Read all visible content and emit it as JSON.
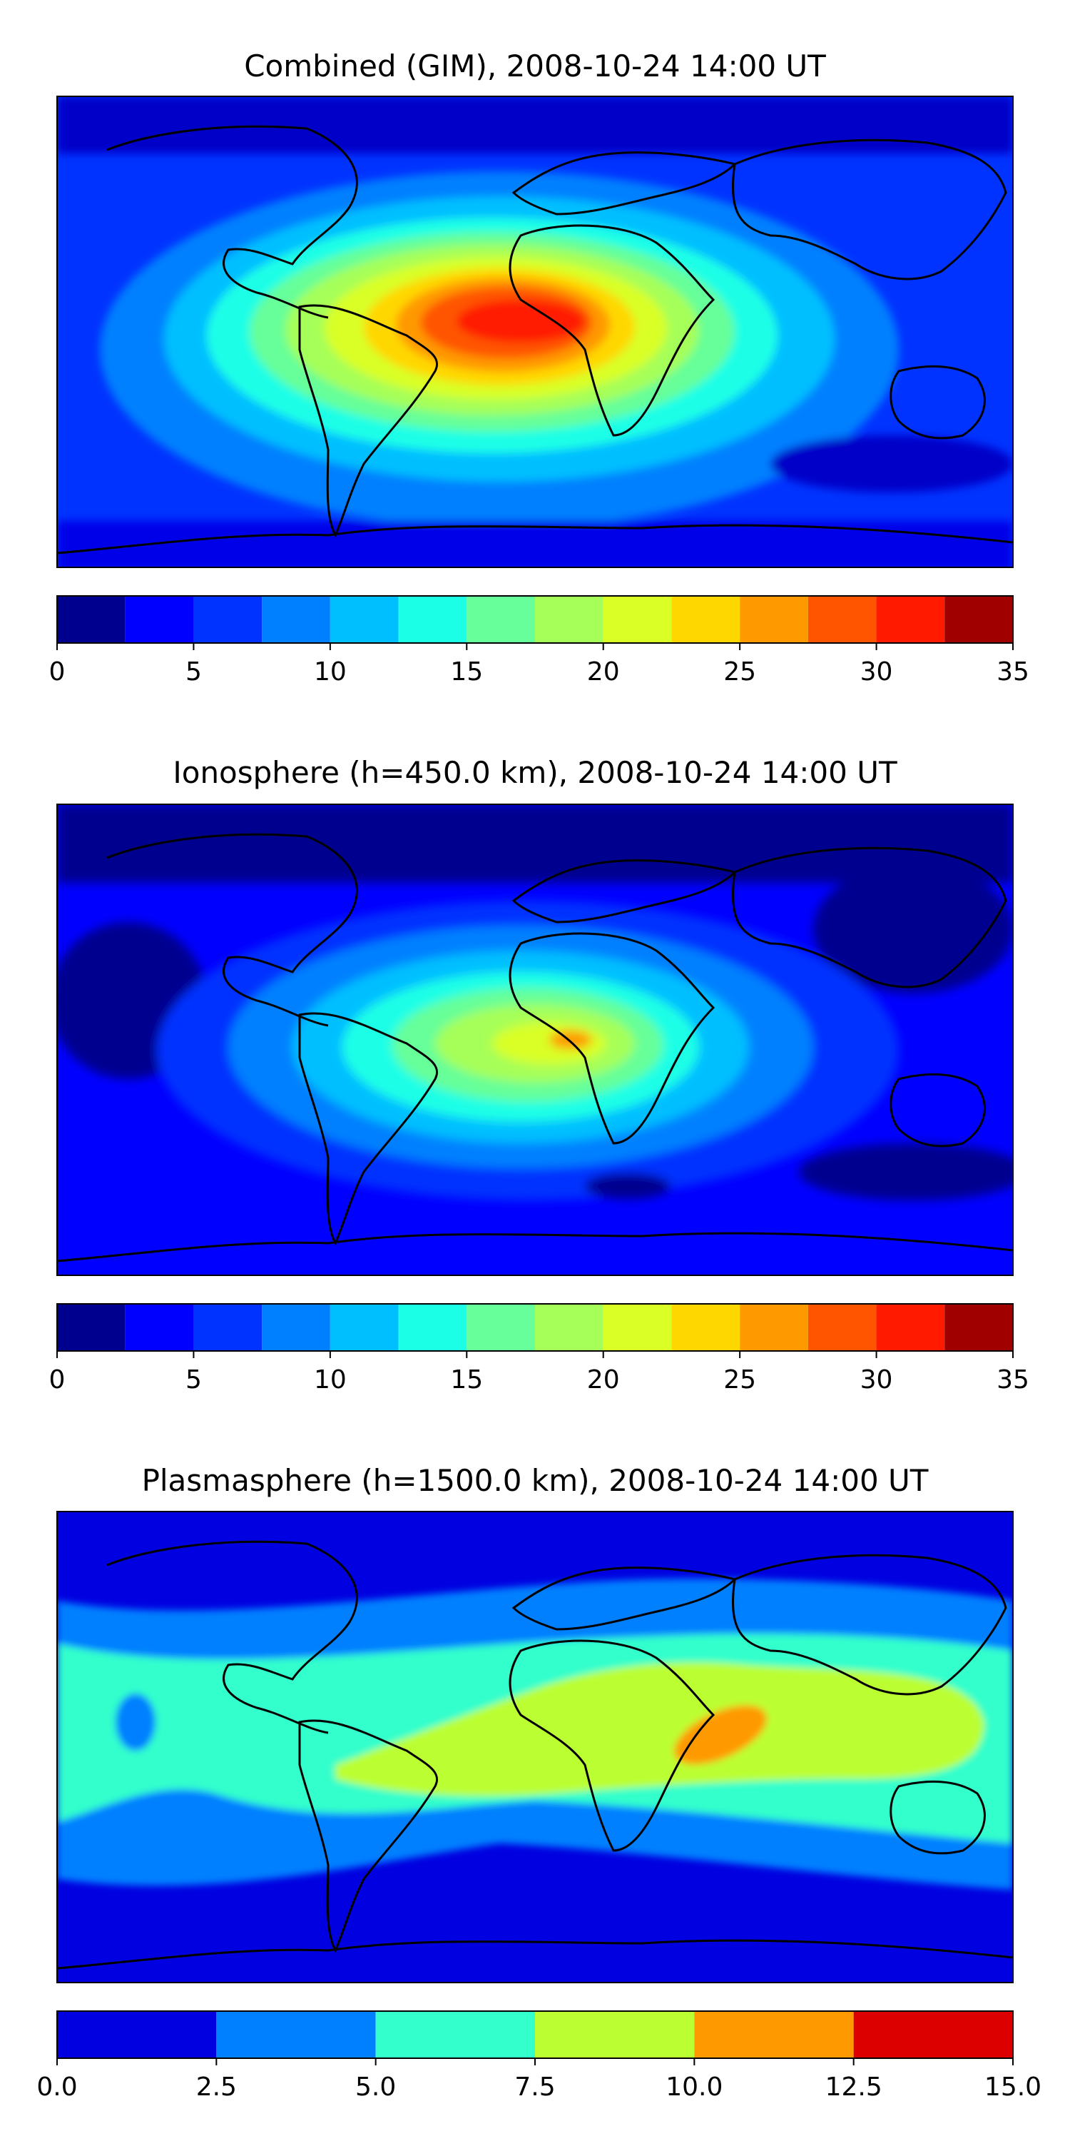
{
  "chart_data": [
    {
      "type": "heatmap",
      "title": "Combined (GIM), 2008-10-24 14:00 UT",
      "colorbar": {
        "levels": [
          0,
          2.5,
          5,
          7.5,
          10,
          12.5,
          15,
          17.5,
          20,
          22.5,
          25,
          27.5,
          30,
          32.5,
          35
        ],
        "ticks": [
          "0",
          "5",
          "10",
          "15",
          "20",
          "25",
          "30",
          "35"
        ],
        "colors": [
          "#00008f",
          "#0000ff",
          "#0033ff",
          "#0080ff",
          "#00bfff",
          "#1affe6",
          "#66ff99",
          "#a6ff59",
          "#d9ff26",
          "#ffd700",
          "#ff9900",
          "#ff5500",
          "#ff1a00",
          "#a00000"
        ]
      },
      "peak_region": "Equatorial Africa / South Atlantic, max > 30"
    },
    {
      "type": "heatmap",
      "title": "Ionosphere  (h=450.0 km), 2008-10-24 14:00 UT",
      "colorbar": {
        "levels": [
          0,
          2.5,
          5,
          7.5,
          10,
          12.5,
          15,
          17.5,
          20,
          22.5,
          25,
          27.5,
          30,
          32.5,
          35
        ],
        "ticks": [
          "0",
          "5",
          "10",
          "15",
          "20",
          "25",
          "30",
          "35"
        ],
        "colors": [
          "#00008f",
          "#0000ff",
          "#0033ff",
          "#0080ff",
          "#00bfff",
          "#1affe6",
          "#66ff99",
          "#a6ff59",
          "#d9ff26",
          "#ffd700",
          "#ff9900",
          "#ff5500",
          "#ff1a00",
          "#a00000"
        ]
      },
      "peak_region": "Central Africa, max about 25"
    },
    {
      "type": "heatmap",
      "title": "Plasmasphere (h=1500.0 km), 2008-10-24 14:00 UT",
      "colorbar": {
        "levels": [
          0,
          2.5,
          5,
          7.5,
          10,
          12.5,
          15
        ],
        "ticks": [
          "0.0",
          "2.5",
          "5.0",
          "7.5",
          "10.0",
          "12.5",
          "15.0"
        ],
        "colors": [
          "#0000e0",
          "#0080ff",
          "#33ffcc",
          "#bbff33",
          "#ff9900",
          "#dd0000"
        ]
      },
      "peak_region": "Horn of Africa / Arabian Sea, max 10 to 12.5"
    }
  ]
}
